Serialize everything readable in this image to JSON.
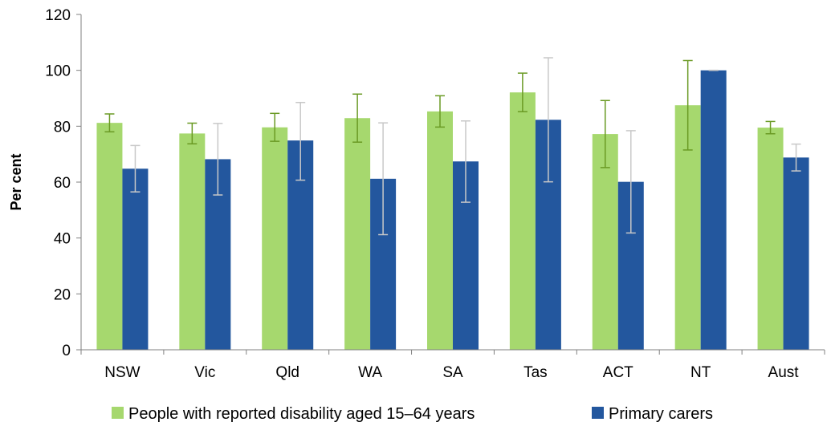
{
  "chart_data": {
    "type": "bar",
    "title": "",
    "xlabel": "",
    "ylabel": "Per cent",
    "ylim": [
      0,
      120
    ],
    "yticks": [
      0,
      20,
      40,
      60,
      80,
      100,
      120
    ],
    "grid": false,
    "legend_position": "bottom",
    "categories": [
      "NSW",
      "Vic",
      "Qld",
      "WA",
      "SA",
      "Tas",
      "ACT",
      "NT",
      "Aust"
    ],
    "series": [
      {
        "name": "People with reported disability aged 15–64 years",
        "color": "#a6d86e",
        "error_bar_color": "#6a9a24",
        "values": [
          81.2,
          77.4,
          79.6,
          82.9,
          85.3,
          92.1,
          77.2,
          87.5,
          79.5
        ],
        "error_low": [
          78.0,
          73.7,
          74.6,
          74.3,
          79.7,
          85.2,
          65.2,
          71.5,
          77.3
        ],
        "error_high": [
          84.4,
          81.1,
          84.6,
          91.5,
          90.9,
          99.0,
          89.2,
          103.5,
          81.7
        ]
      },
      {
        "name": "Primary carers",
        "color": "#23579e",
        "error_bar_color": "#c8c8c8",
        "values": [
          64.8,
          68.2,
          74.9,
          61.2,
          67.4,
          82.3,
          60.1,
          100.0,
          68.8
        ],
        "error_low": [
          56.5,
          55.4,
          60.7,
          41.2,
          52.8,
          60.1,
          41.8,
          100.0,
          64.0
        ],
        "error_high": [
          73.1,
          81.0,
          88.5,
          81.2,
          81.9,
          104.5,
          78.4,
          100.0,
          73.6
        ]
      }
    ]
  }
}
